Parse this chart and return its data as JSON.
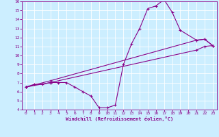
{
  "bg_color": "#cceeff",
  "grid_color": "#aacccc",
  "line_color": "#880088",
  "xlabel": "Windchill (Refroidissement éolien,°C)",
  "xlim": [
    -0.5,
    23.5
  ],
  "ylim": [
    4,
    16
  ],
  "xtick_vals": [
    0,
    1,
    2,
    3,
    4,
    5,
    6,
    7,
    8,
    9,
    10,
    11,
    12,
    13,
    14,
    15,
    16,
    17,
    18,
    19,
    20,
    21,
    22,
    23
  ],
  "ytick_vals": [
    4,
    5,
    6,
    7,
    8,
    9,
    10,
    11,
    12,
    13,
    14,
    15,
    16
  ],
  "line1_x": [
    0,
    1,
    2,
    3,
    4,
    5,
    6,
    7,
    8,
    9,
    10,
    11,
    12,
    13,
    14,
    15,
    16,
    17,
    18,
    19,
    21,
    22,
    23
  ],
  "line1_y": [
    6.5,
    6.8,
    6.8,
    7.0,
    7.0,
    7.0,
    6.5,
    6.0,
    5.5,
    4.2,
    4.2,
    4.5,
    9.0,
    11.3,
    13.0,
    15.2,
    15.5,
    16.2,
    14.8,
    12.8,
    11.7,
    11.8,
    11.1
  ],
  "line2_x": [
    0,
    23
  ],
  "line2_y": [
    6.5,
    11.1
  ],
  "line3_x": [
    0,
    23
  ],
  "line3_y": [
    6.5,
    11.1
  ],
  "line2_ctrl_x": [
    0,
    3,
    21,
    22,
    23
  ],
  "line2_ctrl_y": [
    6.5,
    7.2,
    11.7,
    11.8,
    11.1
  ],
  "line3_ctrl_x": [
    0,
    3,
    21,
    22,
    23
  ],
  "line3_ctrl_y": [
    6.5,
    7.0,
    10.6,
    11.0,
    11.1
  ]
}
